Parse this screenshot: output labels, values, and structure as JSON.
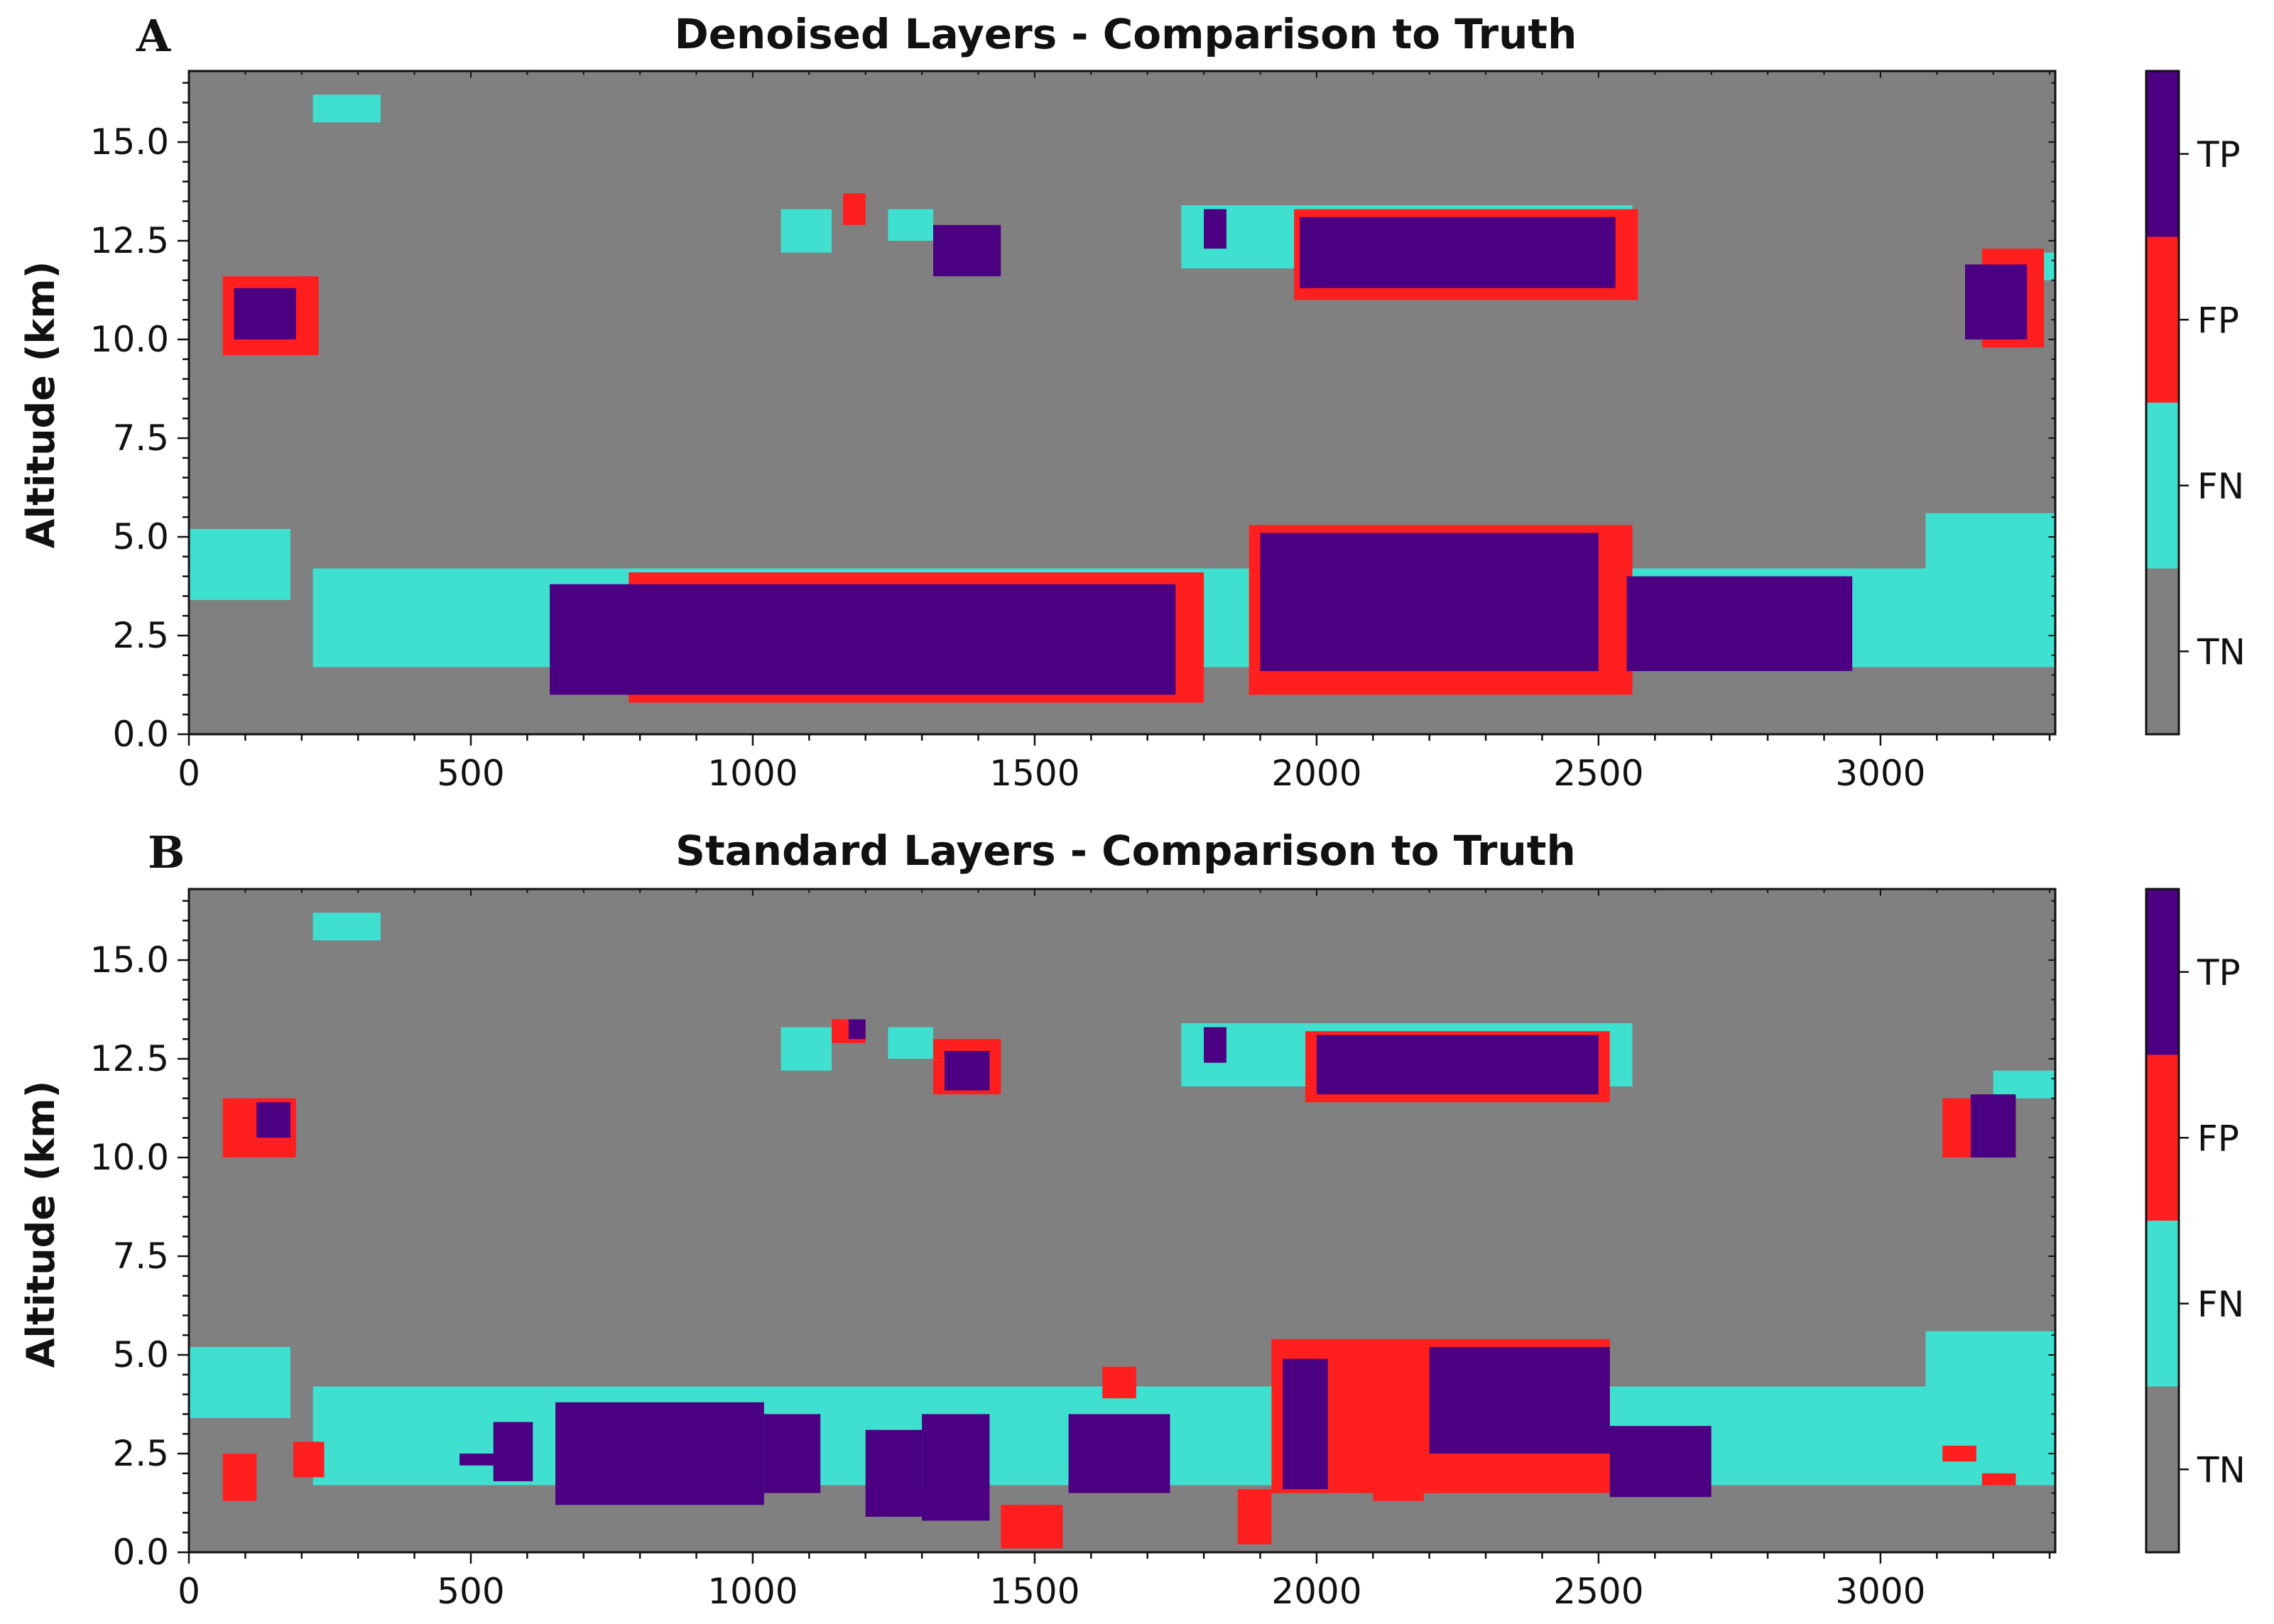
{
  "colors": {
    "TN": "#808080",
    "FN": "#40e0d0",
    "FP": "#ff1f1f",
    "TP": "#4b0082",
    "axis": "#111111"
  },
  "chart_data": [
    {
      "type": "heatmap",
      "panel": "A",
      "title": "Denoised Layers - Comparison to Truth",
      "xlabel": "",
      "ylabel": "Altitude (km)",
      "xlim": [
        0,
        3310
      ],
      "ylim": [
        0.0,
        16.8
      ],
      "xticks": [
        0,
        500,
        1000,
        1500,
        2000,
        2500,
        3000
      ],
      "yticks": [
        0.0,
        2.5,
        5.0,
        7.5,
        10.0,
        12.5,
        15.0
      ],
      "ytick_labels": [
        "0.0",
        "2.5",
        "5.0",
        "7.5",
        "10.0",
        "12.5",
        "15.0"
      ],
      "colorbar": [
        "TN",
        "FN",
        "FP",
        "TP"
      ],
      "background_class": "TN",
      "regions": [
        {
          "cls": "FN",
          "x0": 0,
          "x1": 180,
          "y0": 3.4,
          "y1": 5.2
        },
        {
          "cls": "FN",
          "x0": 220,
          "x1": 3330,
          "y0": 1.7,
          "y1": 4.2
        },
        {
          "cls": "FN",
          "x0": 3080,
          "x1": 3330,
          "y0": 2.4,
          "y1": 5.6
        },
        {
          "cls": "FN",
          "x0": 220,
          "x1": 340,
          "y0": 15.5,
          "y1": 16.2
        },
        {
          "cls": "FN",
          "x0": 1760,
          "x1": 2560,
          "y0": 11.8,
          "y1": 13.4
        },
        {
          "cls": "FN",
          "x0": 1050,
          "x1": 1140,
          "y0": 12.2,
          "y1": 13.3
        },
        {
          "cls": "FN",
          "x0": 1240,
          "x1": 1320,
          "y0": 12.5,
          "y1": 13.3
        },
        {
          "cls": "FN",
          "x0": 3200,
          "x1": 3310,
          "y0": 11.5,
          "y1": 12.2
        },
        {
          "cls": "FP",
          "x0": 780,
          "x1": 1800,
          "y0": 0.8,
          "y1": 4.1
        },
        {
          "cls": "FP",
          "x0": 1880,
          "x1": 2560,
          "y0": 1.0,
          "y1": 5.3
        },
        {
          "cls": "FP",
          "x0": 60,
          "x1": 230,
          "y0": 9.6,
          "y1": 11.6
        },
        {
          "cls": "FP",
          "x0": 1960,
          "x1": 2570,
          "y0": 11.0,
          "y1": 13.3
        },
        {
          "cls": "FP",
          "x0": 3180,
          "x1": 3290,
          "y0": 9.8,
          "y1": 12.3
        },
        {
          "cls": "FP",
          "x0": 1160,
          "x1": 1200,
          "y0": 12.9,
          "y1": 13.7
        },
        {
          "cls": "TP",
          "x0": 640,
          "x1": 1750,
          "y0": 1.0,
          "y1": 3.8
        },
        {
          "cls": "TP",
          "x0": 1900,
          "x1": 2500,
          "y0": 1.6,
          "y1": 5.1
        },
        {
          "cls": "TP",
          "x0": 2550,
          "x1": 2950,
          "y0": 1.6,
          "y1": 4.0
        },
        {
          "cls": "TP",
          "x0": 80,
          "x1": 190,
          "y0": 10.0,
          "y1": 11.3
        },
        {
          "cls": "TP",
          "x0": 1970,
          "x1": 2530,
          "y0": 11.3,
          "y1": 13.1
        },
        {
          "cls": "TP",
          "x0": 1320,
          "x1": 1440,
          "y0": 11.6,
          "y1": 12.9
        },
        {
          "cls": "TP",
          "x0": 1800,
          "x1": 1840,
          "y0": 12.3,
          "y1": 13.3
        },
        {
          "cls": "TP",
          "x0": 3150,
          "x1": 3260,
          "y0": 10.0,
          "y1": 11.9
        }
      ]
    },
    {
      "type": "heatmap",
      "panel": "B",
      "title": "Standard Layers - Comparison to Truth",
      "xlabel": "",
      "ylabel": "Altitude (km)",
      "xlim": [
        0,
        3310
      ],
      "ylim": [
        0.0,
        16.8
      ],
      "xticks": [
        0,
        500,
        1000,
        1500,
        2000,
        2500,
        3000
      ],
      "yticks": [
        0.0,
        2.5,
        5.0,
        7.5,
        10.0,
        12.5,
        15.0
      ],
      "ytick_labels": [
        "0.0",
        "2.5",
        "5.0",
        "7.5",
        "10.0",
        "12.5",
        "15.0"
      ],
      "colorbar": [
        "TN",
        "FN",
        "FP",
        "TP"
      ],
      "background_class": "TN",
      "regions": [
        {
          "cls": "FN",
          "x0": 0,
          "x1": 180,
          "y0": 3.4,
          "y1": 5.2
        },
        {
          "cls": "FN",
          "x0": 220,
          "x1": 3330,
          "y0": 1.7,
          "y1": 4.2
        },
        {
          "cls": "FN",
          "x0": 3080,
          "x1": 3330,
          "y0": 2.4,
          "y1": 5.6
        },
        {
          "cls": "FN",
          "x0": 220,
          "x1": 340,
          "y0": 15.5,
          "y1": 16.2
        },
        {
          "cls": "FN",
          "x0": 1760,
          "x1": 2560,
          "y0": 11.8,
          "y1": 13.4
        },
        {
          "cls": "FN",
          "x0": 1050,
          "x1": 1140,
          "y0": 12.2,
          "y1": 13.3
        },
        {
          "cls": "FN",
          "x0": 1240,
          "x1": 1320,
          "y0": 12.5,
          "y1": 13.3
        },
        {
          "cls": "FN",
          "x0": 3200,
          "x1": 3310,
          "y0": 11.5,
          "y1": 12.2
        },
        {
          "cls": "FP",
          "x0": 60,
          "x1": 120,
          "y0": 1.3,
          "y1": 2.5
        },
        {
          "cls": "FP",
          "x0": 185,
          "x1": 240,
          "y0": 1.9,
          "y1": 2.8
        },
        {
          "cls": "FP",
          "x0": 1620,
          "x1": 1680,
          "y0": 3.9,
          "y1": 4.7
        },
        {
          "cls": "FP",
          "x0": 1440,
          "x1": 1550,
          "y0": 0.1,
          "y1": 1.2
        },
        {
          "cls": "FP",
          "x0": 1860,
          "x1": 1920,
          "y0": 0.2,
          "y1": 1.6
        },
        {
          "cls": "FP",
          "x0": 2100,
          "x1": 2190,
          "y0": 1.3,
          "y1": 2.5
        },
        {
          "cls": "FP",
          "x0": 1920,
          "x1": 2520,
          "y0": 1.5,
          "y1": 5.4
        },
        {
          "cls": "FP",
          "x0": 3110,
          "x1": 3170,
          "y0": 2.3,
          "y1": 2.7
        },
        {
          "cls": "FP",
          "x0": 3180,
          "x1": 3240,
          "y0": 1.7,
          "y1": 2.0
        },
        {
          "cls": "FP",
          "x0": 60,
          "x1": 190,
          "y0": 10.0,
          "y1": 11.5
        },
        {
          "cls": "FP",
          "x0": 3110,
          "x1": 3240,
          "y0": 10.0,
          "y1": 11.5
        },
        {
          "cls": "FP",
          "x0": 1320,
          "x1": 1440,
          "y0": 11.6,
          "y1": 13.0
        },
        {
          "cls": "FP",
          "x0": 1140,
          "x1": 1200,
          "y0": 12.9,
          "y1": 13.5
        },
        {
          "cls": "FP",
          "x0": 1980,
          "x1": 2520,
          "y0": 11.4,
          "y1": 13.2
        },
        {
          "cls": "TP",
          "x0": 480,
          "x1": 560,
          "y0": 2.2,
          "y1": 2.5
        },
        {
          "cls": "TP",
          "x0": 540,
          "x1": 610,
          "y0": 1.8,
          "y1": 3.3
        },
        {
          "cls": "TP",
          "x0": 650,
          "x1": 1020,
          "y0": 1.2,
          "y1": 3.8
        },
        {
          "cls": "TP",
          "x0": 1020,
          "x1": 1120,
          "y0": 1.5,
          "y1": 3.5
        },
        {
          "cls": "TP",
          "x0": 1200,
          "x1": 1300,
          "y0": 0.9,
          "y1": 3.1
        },
        {
          "cls": "TP",
          "x0": 1300,
          "x1": 1420,
          "y0": 0.8,
          "y1": 3.5
        },
        {
          "cls": "TP",
          "x0": 1560,
          "x1": 1740,
          "y0": 1.5,
          "y1": 3.5
        },
        {
          "cls": "TP",
          "x0": 1940,
          "x1": 2020,
          "y0": 1.6,
          "y1": 4.9
        },
        {
          "cls": "TP",
          "x0": 2200,
          "x1": 2520,
          "y0": 2.5,
          "y1": 5.2
        },
        {
          "cls": "TP",
          "x0": 2520,
          "x1": 2700,
          "y0": 1.4,
          "y1": 3.2
        },
        {
          "cls": "TP",
          "x0": 1340,
          "x1": 1420,
          "y0": 11.7,
          "y1": 12.7
        },
        {
          "cls": "TP",
          "x0": 2000,
          "x1": 2500,
          "y0": 11.6,
          "y1": 13.1
        },
        {
          "cls": "TP",
          "x0": 1800,
          "x1": 1840,
          "y0": 12.4,
          "y1": 13.3
        },
        {
          "cls": "TP",
          "x0": 1170,
          "x1": 1200,
          "y0": 13.0,
          "y1": 13.5
        },
        {
          "cls": "TP",
          "x0": 3160,
          "x1": 3240,
          "y0": 10.0,
          "y1": 11.6
        },
        {
          "cls": "TP",
          "x0": 120,
          "x1": 180,
          "y0": 10.5,
          "y1": 11.4
        }
      ]
    }
  ]
}
